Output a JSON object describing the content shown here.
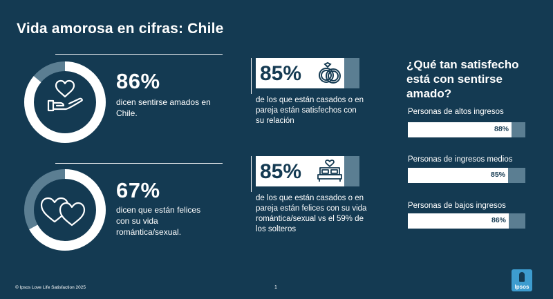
{
  "title": "Vida amorosa en cifras: Chile",
  "stats": [
    {
      "pct": "86%",
      "value": 0.86,
      "desc": "dicen sentirse amados en Chile.",
      "icon": "hand-heart-icon"
    },
    {
      "pct": "67%",
      "value": 0.67,
      "desc": "dicen que están felices con su vida romántica/sexual.",
      "icon": "two-hearts-icon"
    }
  ],
  "cards": [
    {
      "pct": "85%",
      "value": 0.85,
      "desc": "de los que están casados o en pareja están satisfechos con su relación",
      "icon": "rings-icon"
    },
    {
      "pct": "85%",
      "value": 0.85,
      "desc": "de los que están casados o en pareja están felices con su vida romántica/sexual vs el 59% de los solteros",
      "icon": "bed-heart-icon"
    }
  ],
  "question": {
    "title": "¿Qué tan satisfecho está con sentirse amado?",
    "bars": [
      {
        "label": "Personas de altos ingresos",
        "value": "88%",
        "fraction": 0.88
      },
      {
        "label": "Personas de ingresos medios",
        "value": "85%",
        "fraction": 0.85
      },
      {
        "label": "Personas de bajos ingresos",
        "value": "86%",
        "fraction": 0.86
      }
    ]
  },
  "footer": "© Ipsos Love Life Satisfaction 2025",
  "page_number": "1",
  "logo_text": "Ipsos",
  "colors": {
    "background": "#143a52",
    "accent_grey": "#5b7e92",
    "white": "#ffffff",
    "logo": "#3d9ccf"
  }
}
